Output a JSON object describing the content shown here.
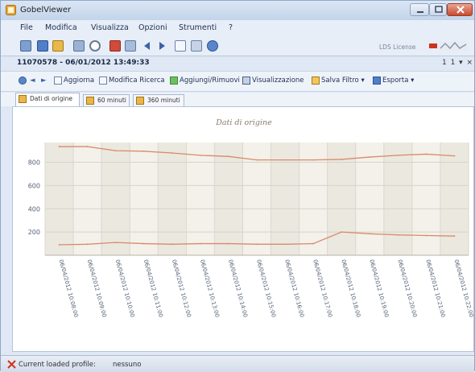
{
  "window": {
    "title": "GobelViewer"
  },
  "menu": [
    "File",
    "Modifica",
    "Visualizza",
    "Opzioni",
    "Strumenti",
    "?"
  ],
  "toolbar": {
    "icons": [
      "add-icon",
      "save-icon",
      "open-folder-icon",
      "chart-icon",
      "gear-icon",
      "delete-icon",
      "grid-icon",
      "back-arrow-icon",
      "forward-arrow-icon",
      "window-icon",
      "settings-icon",
      "globe-icon"
    ],
    "license_text": "LDS License",
    "brand_logo": "brand-logo"
  },
  "document": {
    "tab_title": "11070578 - 06/01/2012 13:49:33",
    "controls": "1  1  ▾ ×"
  },
  "viewer_toolbar": {
    "items": [
      {
        "icon": "globe-icon",
        "label": ""
      },
      {
        "icon": "arrow-left-icon",
        "label": "◄"
      },
      {
        "icon": "arrow-right-icon",
        "label": "►"
      },
      {
        "icon": "refresh-icon",
        "label": "Aggiorna"
      },
      {
        "icon": "search-edit-icon",
        "label": "Modifica Ricerca"
      },
      {
        "icon": "add-remove-icon",
        "label": "Aggiungi/Rimuovi"
      },
      {
        "icon": "view-icon",
        "label": "Visualizzazione"
      },
      {
        "icon": "filter-icon",
        "label": "Salva Filtro ▾"
      },
      {
        "icon": "export-icon",
        "label": "Esporta ▾"
      }
    ]
  },
  "tabs": [
    {
      "label": "Dati di origine",
      "active": true
    },
    {
      "label": "60 minuti",
      "active": false
    },
    {
      "label": "360 minuti",
      "active": false
    }
  ],
  "chart_data": {
    "type": "line",
    "title": "Dati di origine",
    "xlabel": "",
    "ylabel": "",
    "ylim": [
      0,
      970
    ],
    "yticks": [
      200,
      400,
      600,
      800
    ],
    "grid": true,
    "categories": [
      "06/04/2012 10:08:00",
      "06/04/2012 10:09:00",
      "06/04/2012 10:10:00",
      "06/04/2012 10:11:00",
      "06/04/2012 10:12:00",
      "06/04/2012 10:13:00",
      "06/04/2012 10:14:00",
      "06/04/2012 10:15:00",
      "06/04/2012 10:16:00",
      "06/04/2012 10:17:00",
      "06/04/2012 10:18:00",
      "06/04/2012 10:19:00",
      "06/04/2012 10:20:00",
      "06/04/2012 10:21:00",
      "06/04/2012 10:22:00"
    ],
    "series": [
      {
        "color": "#d98a6c",
        "values": [
          935,
          935,
          900,
          895,
          880,
          860,
          850,
          820,
          820,
          820,
          825,
          845,
          860,
          870,
          855
        ]
      },
      {
        "color": "#d98a6c",
        "values": [
          90,
          95,
          110,
          100,
          95,
          100,
          100,
          95,
          95,
          100,
          200,
          185,
          175,
          170,
          165
        ]
      }
    ]
  },
  "status": {
    "label": "Current loaded profile:",
    "value": "nessuno"
  }
}
